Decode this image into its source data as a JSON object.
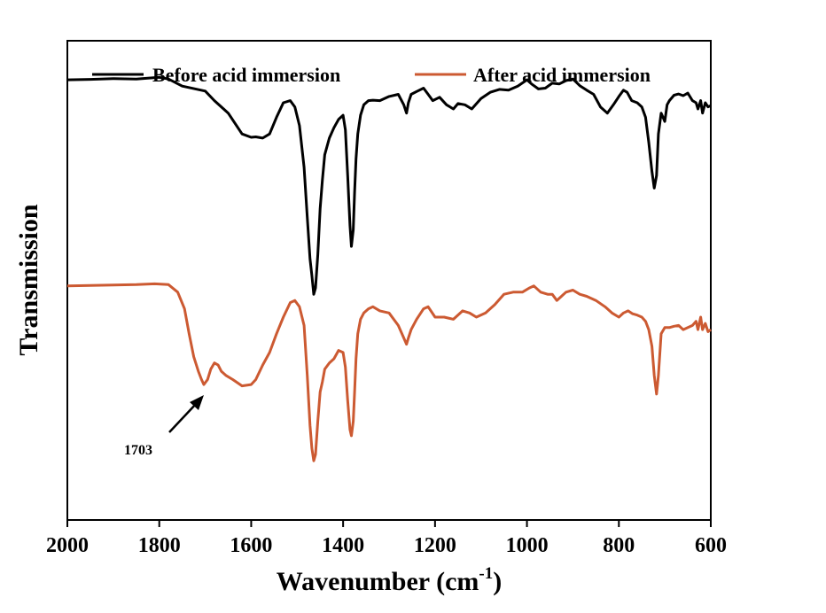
{
  "chart_data": {
    "type": "line",
    "xlabel": "Wavenumber (cm",
    "xlabel_sup": "-1",
    "xlabel_close": ")",
    "ylabel": "Transmission",
    "xlim": [
      2000,
      600
    ],
    "x_reversed": true,
    "xticks": [
      2000,
      1800,
      1600,
      1400,
      1200,
      1000,
      800,
      600
    ],
    "xtick_labels": [
      "2000",
      "1800",
      "1600",
      "1400",
      "1200",
      "1000",
      "800",
      "600"
    ],
    "y_tick_labels_shown": false,
    "legend_position": "top",
    "series": [
      {
        "name": "Before acid immersion",
        "color": "#000000",
        "x": [
          2000,
          1950,
          1900,
          1850,
          1800,
          1780,
          1750,
          1700,
          1680,
          1650,
          1620,
          1600,
          1590,
          1575,
          1560,
          1545,
          1530,
          1515,
          1505,
          1495,
          1485,
          1478,
          1472,
          1468,
          1464,
          1460,
          1455,
          1450,
          1445,
          1440,
          1430,
          1420,
          1410,
          1400,
          1395,
          1390,
          1385,
          1382,
          1378,
          1375,
          1372,
          1368,
          1362,
          1355,
          1345,
          1335,
          1320,
          1300,
          1280,
          1268,
          1262,
          1258,
          1252,
          1240,
          1225,
          1215,
          1205,
          1190,
          1175,
          1160,
          1150,
          1135,
          1120,
          1100,
          1080,
          1060,
          1040,
          1020,
          1000,
          990,
          975,
          960,
          945,
          930,
          915,
          900,
          885,
          870,
          855,
          840,
          825,
          812,
          800,
          790,
          782,
          772,
          760,
          750,
          742,
          735,
          728,
          723,
          718,
          714,
          708,
          700,
          695,
          690,
          680,
          670,
          660,
          650,
          640,
          632,
          628,
          622,
          618,
          612,
          606,
          600
        ],
        "y": [
          97.0,
          97.1,
          97.3,
          97.2,
          97.6,
          97.2,
          95.5,
          94.3,
          92.0,
          89.0,
          84.0,
          83.2,
          83.3,
          83.0,
          84.0,
          88.0,
          91.5,
          92.0,
          90.5,
          86.0,
          76.0,
          64.0,
          54.0,
          50.0,
          45.5,
          47.0,
          55.0,
          66.0,
          73.0,
          79.0,
          83.0,
          85.5,
          87.5,
          88.5,
          85.0,
          74.0,
          62.0,
          57.0,
          61.0,
          70.0,
          78.0,
          84.0,
          88.5,
          91.0,
          92.0,
          92.1,
          92.0,
          93.0,
          93.5,
          91.0,
          89.0,
          91.5,
          93.5,
          94.2,
          95.0,
          93.5,
          92.0,
          92.8,
          91.0,
          90.0,
          91.3,
          91.0,
          90.0,
          92.5,
          94.0,
          94.7,
          94.5,
          95.5,
          97.0,
          96.0,
          94.8,
          95.0,
          96.2,
          96.0,
          96.8,
          97.2,
          95.6,
          94.5,
          93.5,
          90.5,
          89.0,
          91.0,
          93.0,
          94.5,
          94.0,
          92.0,
          91.5,
          90.5,
          88.0,
          82.0,
          75.0,
          71.0,
          74.0,
          84.0,
          89.0,
          87.0,
          91.0,
          92.0,
          93.3,
          93.6,
          93.2,
          93.8,
          92.0,
          91.5,
          90.0,
          92.0,
          89.0,
          91.5,
          90.5,
          90.8
        ]
      },
      {
        "name": "After acid immersion",
        "color": "#cc5a32",
        "x": [
          2000,
          1950,
          1900,
          1850,
          1810,
          1780,
          1760,
          1745,
          1735,
          1725,
          1715,
          1708,
          1703,
          1695,
          1688,
          1680,
          1672,
          1665,
          1655,
          1640,
          1620,
          1600,
          1590,
          1575,
          1560,
          1545,
          1530,
          1515,
          1505,
          1495,
          1485,
          1478,
          1472,
          1468,
          1464,
          1460,
          1455,
          1450,
          1445,
          1440,
          1430,
          1420,
          1410,
          1400,
          1395,
          1390,
          1385,
          1382,
          1378,
          1375,
          1372,
          1368,
          1362,
          1355,
          1345,
          1335,
          1320,
          1300,
          1280,
          1268,
          1262,
          1258,
          1252,
          1240,
          1225,
          1215,
          1200,
          1180,
          1160,
          1140,
          1125,
          1110,
          1090,
          1070,
          1050,
          1030,
          1010,
          995,
          985,
          970,
          955,
          945,
          935,
          925,
          915,
          900,
          885,
          870,
          850,
          830,
          815,
          800,
          790,
          780,
          770,
          760,
          750,
          742,
          735,
          728,
          723,
          718,
          714,
          708,
          700,
          690,
          680,
          670,
          660,
          650,
          640,
          632,
          628,
          622,
          618,
          612,
          606,
          600
        ],
        "y": [
          47.5,
          47.6,
          47.7,
          47.8,
          48.0,
          47.8,
          46.0,
          42.0,
          36.0,
          30.5,
          27.0,
          25.0,
          23.8,
          25.0,
          27.5,
          29.0,
          28.5,
          27.0,
          26.0,
          25.0,
          23.5,
          23.8,
          25.0,
          28.5,
          31.5,
          36.0,
          40.0,
          43.5,
          44.0,
          42.5,
          38.0,
          26.0,
          14.0,
          8.5,
          5.5,
          7.0,
          15.0,
          22.0,
          24.5,
          27.5,
          29.0,
          30.0,
          32.0,
          31.5,
          28.0,
          20.0,
          13.0,
          11.5,
          15.0,
          22.0,
          30.0,
          36.0,
          39.5,
          41.0,
          42.0,
          42.5,
          41.5,
          41.0,
          38.0,
          35.0,
          33.5,
          35.0,
          37.0,
          39.5,
          42.0,
          42.5,
          40.0,
          40.0,
          39.5,
          41.5,
          41.0,
          40.0,
          41.0,
          43.0,
          45.5,
          46.0,
          46.0,
          47.0,
          47.5,
          46.0,
          45.5,
          45.5,
          44.0,
          45.0,
          46.0,
          46.5,
          45.5,
          45.0,
          44.0,
          42.5,
          41.0,
          40.0,
          41.0,
          41.5,
          40.8,
          40.5,
          40.0,
          39.0,
          37.0,
          33.0,
          26.0,
          21.5,
          26.0,
          36.0,
          37.5,
          37.5,
          37.8,
          38.0,
          37.0,
          37.5,
          38.0,
          39.0,
          37.0,
          40.0,
          37.0,
          38.5,
          36.5,
          37.0
        ]
      }
    ],
    "annotations": [
      {
        "text": "1703",
        "x": 1703,
        "series": 1
      }
    ]
  }
}
